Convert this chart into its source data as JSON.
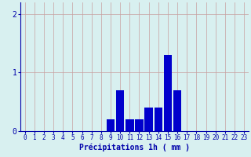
{
  "hours": [
    0,
    1,
    2,
    3,
    4,
    5,
    6,
    7,
    8,
    9,
    10,
    11,
    12,
    13,
    14,
    15,
    16,
    17,
    18,
    19,
    20,
    21,
    22,
    23
  ],
  "values": [
    0,
    0,
    0,
    0,
    0,
    0,
    0,
    0,
    0,
    0.2,
    0.7,
    0.2,
    0.2,
    0.4,
    0.4,
    1.3,
    0.7,
    0,
    0,
    0,
    0,
    0,
    0,
    0
  ],
  "bar_color": "#0000cc",
  "background_color": "#d8f0f0",
  "grid_color": "#c8a0a0",
  "axis_color": "#0000aa",
  "xlabel": "Précipitations 1h ( mm )",
  "xlabel_fontsize": 7,
  "tick_fontsize": 5.5,
  "ylim": [
    0,
    2.2
  ],
  "yticks": [
    0,
    1,
    2
  ],
  "xlim": [
    -0.5,
    23.5
  ]
}
